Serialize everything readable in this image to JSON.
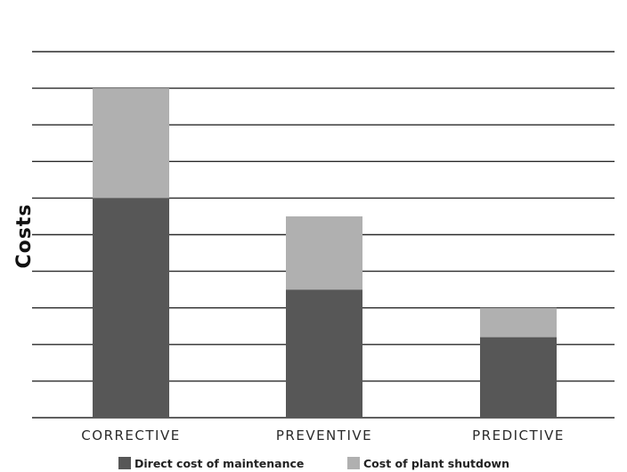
{
  "chart_data": {
    "type": "bar",
    "stacked": true,
    "categories": [
      "CORRECTIVE",
      "PREVENTIVE",
      "PREDICTIVE"
    ],
    "series": [
      {
        "name": "Direct cost of maintenance",
        "values": [
          6,
          3.5,
          2.2
        ],
        "color": "#575757"
      },
      {
        "name": "Cost of plant shutdown",
        "values": [
          3,
          2,
          0.8
        ],
        "color": "#b0b0b0"
      }
    ],
    "title": "",
    "xlabel": "",
    "ylabel": "Costs",
    "ylim": [
      0,
      10
    ],
    "grid": true,
    "legend_position": "bottom"
  }
}
